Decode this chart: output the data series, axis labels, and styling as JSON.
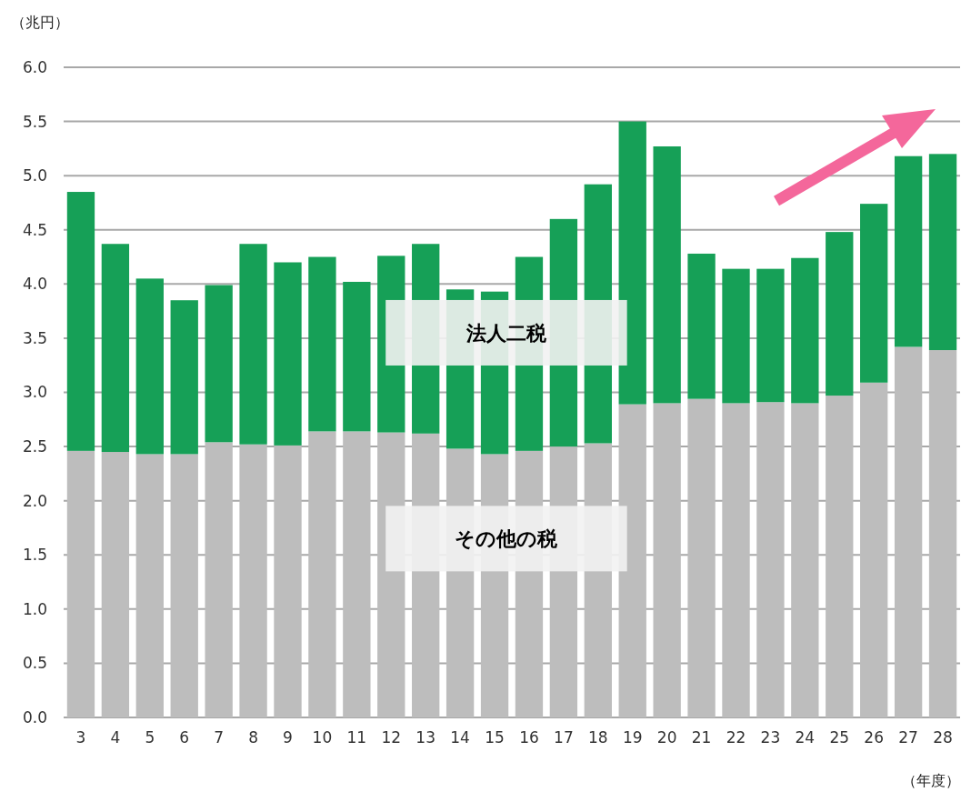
{
  "chart_data": {
    "type": "bar",
    "stacked": true,
    "ylabel": "（兆円）",
    "xlabel": "（年度）",
    "categories": [
      "3",
      "4",
      "5",
      "6",
      "7",
      "8",
      "9",
      "10",
      "11",
      "12",
      "13",
      "14",
      "15",
      "16",
      "17",
      "18",
      "19",
      "20",
      "21",
      "22",
      "23",
      "24",
      "25",
      "26",
      "27",
      "28"
    ],
    "series": [
      {
        "name": "その他の税",
        "color": "#bdbdbd",
        "values": [
          2.46,
          2.45,
          2.43,
          2.43,
          2.54,
          2.52,
          2.51,
          2.64,
          2.64,
          2.63,
          2.62,
          2.48,
          2.43,
          2.46,
          2.5,
          2.53,
          2.89,
          2.9,
          2.94,
          2.9,
          2.91,
          2.9,
          2.97,
          3.09,
          3.42,
          3.39
        ]
      },
      {
        "name": "法人二税",
        "color": "#16a057",
        "values": [
          2.39,
          1.92,
          1.62,
          1.42,
          1.45,
          1.85,
          1.69,
          1.61,
          1.38,
          1.63,
          1.75,
          1.47,
          1.5,
          1.79,
          2.1,
          2.39,
          2.61,
          2.37,
          1.34,
          1.24,
          1.23,
          1.34,
          1.51,
          1.65,
          1.76,
          1.81
        ]
      }
    ],
    "ylim": [
      0,
      6
    ],
    "yticks": [
      {
        "value": 0,
        "label": "0.0"
      },
      {
        "value": 0.5,
        "label": "0.5"
      },
      {
        "value": 1,
        "label": "1.0"
      },
      {
        "value": 1.5,
        "label": "1.5"
      },
      {
        "value": 2,
        "label": "2.0"
      },
      {
        "value": 2.5,
        "label": "2.5"
      },
      {
        "value": 3,
        "label": "3.0"
      },
      {
        "value": 3.5,
        "label": "3.5"
      },
      {
        "value": 4,
        "label": "4.0"
      },
      {
        "value": 4.5,
        "label": "4.5"
      },
      {
        "value": 5,
        "label": "5.0"
      },
      {
        "value": 5.5,
        "label": "5.5"
      },
      {
        "value": 6,
        "label": "6.0"
      }
    ],
    "grid": "y",
    "legend": false
  }
}
